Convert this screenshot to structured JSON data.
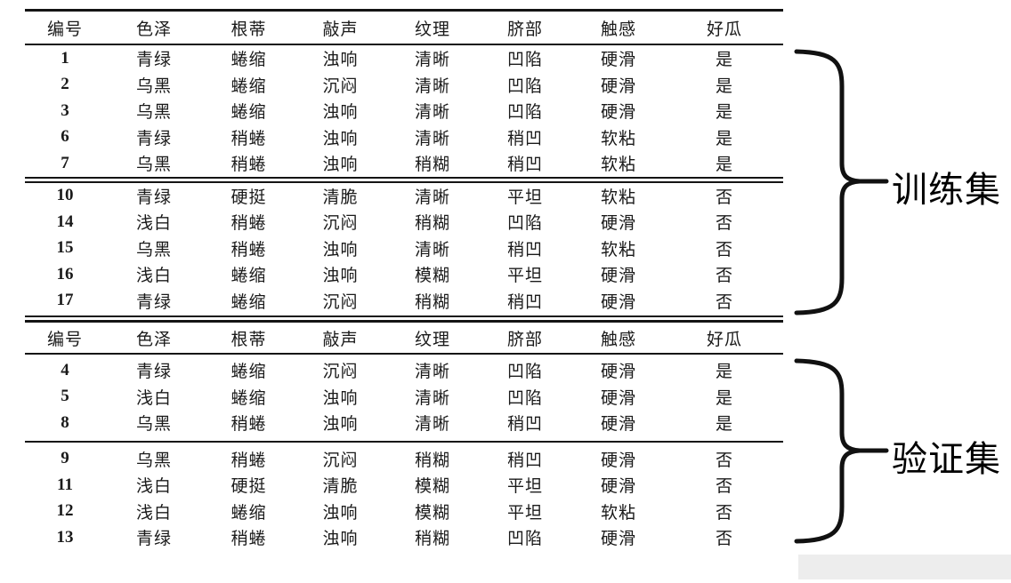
{
  "columns": [
    "编号",
    "色泽",
    "根蒂",
    "敲声",
    "纹理",
    "脐部",
    "触感",
    "好瓜"
  ],
  "train_table": {
    "sections": [
      {
        "rows": [
          [
            "1",
            "青绿",
            "蜷缩",
            "浊响",
            "清晰",
            "凹陷",
            "硬滑",
            "是"
          ],
          [
            "2",
            "乌黑",
            "蜷缩",
            "沉闷",
            "清晰",
            "凹陷",
            "硬滑",
            "是"
          ],
          [
            "3",
            "乌黑",
            "蜷缩",
            "浊响",
            "清晰",
            "凹陷",
            "硬滑",
            "是"
          ],
          [
            "6",
            "青绿",
            "稍蜷",
            "浊响",
            "清晰",
            "稍凹",
            "软粘",
            "是"
          ],
          [
            "7",
            "乌黑",
            "稍蜷",
            "浊响",
            "稍糊",
            "稍凹",
            "软粘",
            "是"
          ]
        ]
      },
      {
        "rows": [
          [
            "10",
            "青绿",
            "硬挺",
            "清脆",
            "清晰",
            "平坦",
            "软粘",
            "否"
          ],
          [
            "14",
            "浅白",
            "稍蜷",
            "沉闷",
            "稍糊",
            "凹陷",
            "硬滑",
            "否"
          ],
          [
            "15",
            "乌黑",
            "稍蜷",
            "浊响",
            "清晰",
            "稍凹",
            "软粘",
            "否"
          ],
          [
            "16",
            "浅白",
            "蜷缩",
            "浊响",
            "模糊",
            "平坦",
            "硬滑",
            "否"
          ],
          [
            "17",
            "青绿",
            "蜷缩",
            "沉闷",
            "稍糊",
            "稍凹",
            "硬滑",
            "否"
          ]
        ]
      }
    ]
  },
  "validation_table": {
    "sections": [
      {
        "rows": [
          [
            "4",
            "青绿",
            "蜷缩",
            "沉闷",
            "清晰",
            "凹陷",
            "硬滑",
            "是"
          ],
          [
            "5",
            "浅白",
            "蜷缩",
            "浊响",
            "清晰",
            "凹陷",
            "硬滑",
            "是"
          ],
          [
            "8",
            "乌黑",
            "稍蜷",
            "浊响",
            "清晰",
            "稍凹",
            "硬滑",
            "是"
          ]
        ]
      },
      {
        "rows": [
          [
            "9",
            "乌黑",
            "稍蜷",
            "沉闷",
            "稍糊",
            "稍凹",
            "硬滑",
            "否"
          ],
          [
            "11",
            "浅白",
            "硬挺",
            "清脆",
            "模糊",
            "平坦",
            "硬滑",
            "否"
          ],
          [
            "12",
            "浅白",
            "蜷缩",
            "浊响",
            "模糊",
            "平坦",
            "软粘",
            "否"
          ],
          [
            "13",
            "青绿",
            "稍蜷",
            "浊响",
            "稍糊",
            "凹陷",
            "硬滑",
            "否"
          ]
        ]
      }
    ]
  },
  "annotations": {
    "train_label": "训练集",
    "validation_label": "验证集"
  },
  "colors": {
    "text": "#1a1a1a",
    "rule": "#141414",
    "brace": "#111111",
    "footer_bar": "#ededed"
  }
}
